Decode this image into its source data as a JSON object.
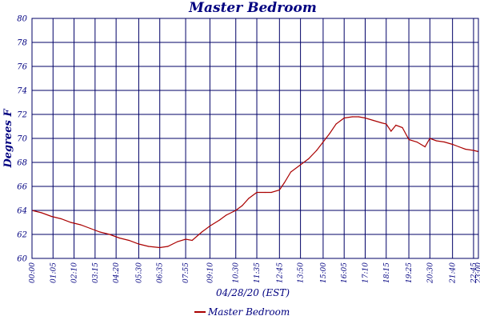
{
  "chart_data": {
    "type": "line",
    "title": "Master Bedroom",
    "xlabel": "04/28/20 (EST)",
    "ylabel": "Degrees F",
    "ylim": [
      60,
      80
    ],
    "yticks": [
      "60",
      "62",
      "64",
      "66",
      "68",
      "70",
      "72",
      "74",
      "76",
      "78",
      "80"
    ],
    "xlim": [
      "00:00",
      "23:00"
    ],
    "xticks": [
      "00:00",
      "01:05",
      "02:10",
      "03:15",
      "04:20",
      "05:30",
      "06:35",
      "07:55",
      "09:10",
      "10:30",
      "11:35",
      "12:45",
      "13:50",
      "15:00",
      "16:05",
      "17:10",
      "18:15",
      "19:25",
      "20:30",
      "21:40",
      "22:45",
      "23:00"
    ],
    "grid": true,
    "legend_position": "bottom",
    "series": [
      {
        "name": "Master Bedroom",
        "color": "#aa0000",
        "x": [
          "00:00",
          "00:30",
          "01:00",
          "01:30",
          "02:00",
          "02:30",
          "03:00",
          "03:30",
          "04:00",
          "04:30",
          "05:00",
          "05:30",
          "06:00",
          "06:35",
          "07:00",
          "07:30",
          "07:55",
          "08:15",
          "08:45",
          "09:10",
          "09:40",
          "10:00",
          "10:30",
          "10:50",
          "11:10",
          "11:35",
          "12:00",
          "12:20",
          "12:45",
          "13:00",
          "13:20",
          "13:50",
          "14:15",
          "14:40",
          "15:00",
          "15:20",
          "15:40",
          "16:05",
          "16:30",
          "16:50",
          "17:10",
          "17:35",
          "18:00",
          "18:15",
          "18:30",
          "18:45",
          "19:05",
          "19:25",
          "19:50",
          "20:15",
          "20:30",
          "20:50",
          "21:15",
          "21:40",
          "22:00",
          "22:20",
          "22:45",
          "23:00"
        ],
        "y": [
          64.0,
          63.8,
          63.5,
          63.3,
          63.0,
          62.8,
          62.5,
          62.2,
          62.0,
          61.7,
          61.5,
          61.2,
          61.0,
          60.9,
          61.0,
          61.4,
          61.6,
          61.5,
          62.2,
          62.7,
          63.2,
          63.6,
          64.0,
          64.4,
          65.0,
          65.5,
          65.5,
          65.5,
          65.7,
          66.3,
          67.2,
          67.8,
          68.3,
          69.0,
          69.7,
          70.4,
          71.2,
          71.7,
          71.8,
          71.8,
          71.7,
          71.5,
          71.3,
          71.2,
          70.6,
          71.1,
          70.9,
          69.9,
          69.7,
          69.3,
          70.0,
          69.8,
          69.7,
          69.5,
          69.3,
          69.1,
          69.0,
          68.9
        ]
      }
    ]
  }
}
